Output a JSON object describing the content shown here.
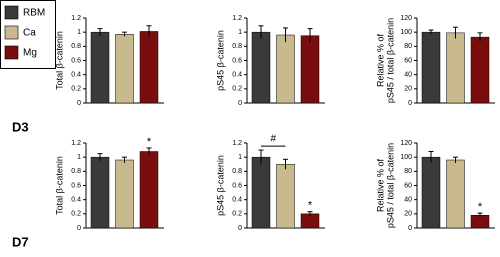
{
  "legend": [
    {
      "name": "RBM",
      "color": "#3a3a3a"
    },
    {
      "name": "Ca",
      "color": "#c8b98e"
    },
    {
      "name": "Mg",
      "color": "#7a0e0e"
    }
  ],
  "rows": [
    "D3",
    "D7"
  ],
  "chart_data": [
    {
      "type": "bar",
      "ylabel": [
        "Total β-catenin"
      ],
      "values": [
        1.0,
        0.97,
        1.01
      ],
      "errors": [
        0.05,
        0.03,
        0.08
      ],
      "ylim": [
        0,
        1.2
      ],
      "yticks": [
        0,
        0.2,
        0.4,
        0.6,
        0.8,
        1,
        1.2
      ]
    },
    {
      "type": "bar",
      "ylabel": [
        "pS45 β-catenin"
      ],
      "values": [
        1.0,
        0.96,
        0.95
      ],
      "errors": [
        0.09,
        0.1,
        0.1
      ],
      "ylim": [
        0,
        1.2
      ],
      "yticks": [
        0,
        0.2,
        0.4,
        0.6,
        0.8,
        1,
        1.2
      ]
    },
    {
      "type": "bar",
      "ylabel": [
        "Relative % of",
        "pS45 / total β-catenin"
      ],
      "values": [
        100,
        99,
        93
      ],
      "errors": [
        3,
        8,
        6
      ],
      "ylim": [
        0,
        120
      ],
      "yticks": [
        0,
        20,
        40,
        60,
        80,
        100,
        120
      ]
    },
    {
      "type": "bar",
      "ylabel": [
        "Total β-catenin"
      ],
      "values": [
        1.0,
        0.96,
        1.08
      ],
      "errors": [
        0.05,
        0.04,
        0.05
      ],
      "ylim": [
        0,
        1.2
      ],
      "yticks": [
        0,
        0.2,
        0.4,
        0.6,
        0.8,
        1,
        1.2
      ],
      "annotations": [
        {
          "text": "*",
          "bars": [
            2
          ]
        }
      ]
    },
    {
      "type": "bar",
      "ylabel": [
        "pS45 β-catenin"
      ],
      "values": [
        1.0,
        0.9,
        0.2
      ],
      "errors": [
        0.1,
        0.07,
        0.03
      ],
      "ylim": [
        0,
        1.2
      ],
      "yticks": [
        0,
        0.2,
        0.4,
        0.6,
        0.8,
        1,
        1.2
      ],
      "annotations": [
        {
          "text": "#",
          "bars": [
            0,
            1
          ]
        },
        {
          "text": "*",
          "bars": [
            2
          ]
        }
      ]
    },
    {
      "type": "bar",
      "ylabel": [
        "Relative % of",
        "pS45 / total β-catenin"
      ],
      "values": [
        100,
        96,
        18
      ],
      "errors": [
        8,
        4,
        3
      ],
      "ylim": [
        0,
        120
      ],
      "yticks": [
        0,
        20,
        40,
        60,
        80,
        100,
        120
      ],
      "annotations": [
        {
          "text": "*",
          "bars": [
            2
          ]
        }
      ]
    }
  ]
}
